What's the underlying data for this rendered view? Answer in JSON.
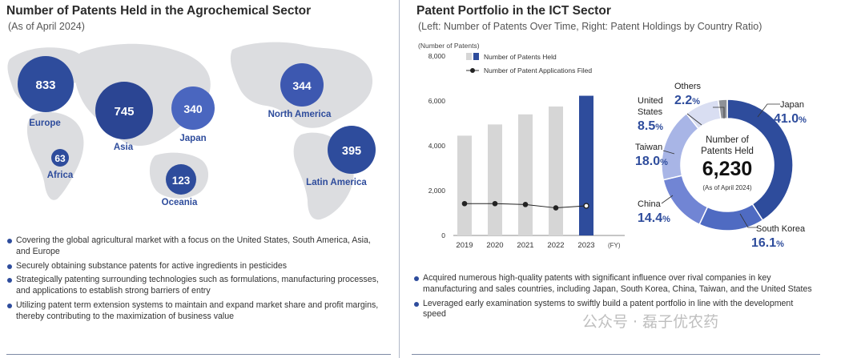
{
  "left": {
    "title": "Number of Patents Held in the Agrochemical Sector",
    "subtitle": "(As of April 2024)",
    "regions": [
      {
        "name": "Europe",
        "value": "833"
      },
      {
        "name": "Asia",
        "value": "745"
      },
      {
        "name": "Japan",
        "value": "340"
      },
      {
        "name": "North America",
        "value": "344"
      },
      {
        "name": "Africa",
        "value": "63"
      },
      {
        "name": "Oceania",
        "value": "123"
      },
      {
        "name": "Latin America",
        "value": "395"
      }
    ],
    "bullets": [
      "Covering the global agricultural market with a focus on the United States, South America, Asia, and Europe",
      "Securely obtaining substance patents for active ingredients in pesticides",
      "Strategically patenting surrounding technologies such as formulations, manufacturing processes, and applications to establish strong barriers of entry",
      "Utilizing patent term extension systems to maintain and expand market share and profit margins, thereby contributing to the maximization of business value"
    ]
  },
  "right": {
    "title": "Patent Portfolio in the ICT Sector",
    "subtitle": "(Left: Number of Patents Over Time, Right: Patent Holdings by Country Ratio)",
    "bullets": [
      "Acquired numerous high-quality patents with significant influence over rival companies in key manufacturing and sales countries, including Japan, South Korea, China, Taiwan, and the United States",
      "Leveraged early examination systems to swiftly build a patent portfolio in line with the development speed"
    ]
  },
  "chart_data": [
    {
      "type": "bar",
      "title": "",
      "ylabel": "(Number of Patents)",
      "xlabel": "(FY)",
      "categories": [
        "2019",
        "2020",
        "2021",
        "2022",
        "2023"
      ],
      "yticks": [
        "0",
        "2,000",
        "4,000",
        "6,000",
        "8,000"
      ],
      "ylim": [
        0,
        8000
      ],
      "series": [
        {
          "name": "Number of Patents Held",
          "kind": "bar",
          "values": [
            4450,
            4950,
            5400,
            5750,
            6230
          ]
        },
        {
          "name": "Number of Patent Applications Filed",
          "kind": "line",
          "values": [
            1420,
            1420,
            1380,
            1230,
            1320
          ]
        }
      ],
      "legend": [
        "Number of Patents Held",
        "Number of Patent Applications Filed"
      ]
    },
    {
      "type": "pie",
      "title": "Number of Patents Held",
      "center_value": "6,230",
      "center_note": "(As of April 2024)",
      "slices": [
        {
          "label": "Japan",
          "value": 41.0,
          "display": "41.0",
          "unit": "%",
          "color": "#2e4c9c"
        },
        {
          "label": "South Korea",
          "value": 16.1,
          "display": "16.1",
          "unit": "%",
          "color": "#4f6bc2"
        },
        {
          "label": "China",
          "value": 14.4,
          "display": "14.4",
          "unit": "%",
          "color": "#7185d4"
        },
        {
          "label": "Taiwan",
          "value": 18.0,
          "display": "18.0",
          "unit": "%",
          "color": "#a8b5e6"
        },
        {
          "label": "United States",
          "value": 8.5,
          "display": "8.5",
          "unit": "%",
          "color": "#d9def2"
        },
        {
          "label": "Others",
          "value": 2.2,
          "display": "2.2",
          "unit": "%",
          "color": "#8e9197"
        }
      ]
    }
  ],
  "watermark": "公众号 · 磊子优农药"
}
